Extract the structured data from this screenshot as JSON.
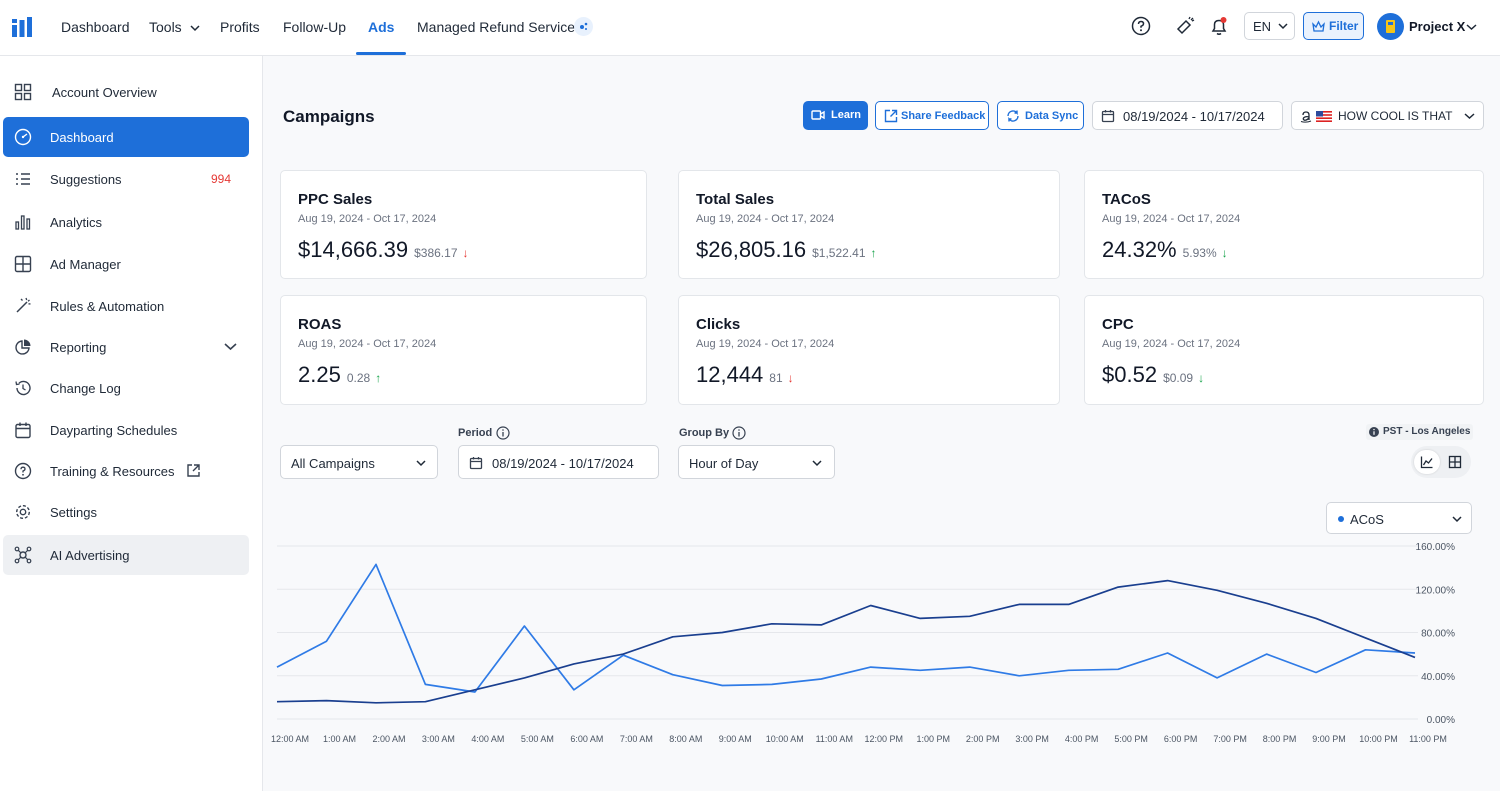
{
  "nav": {
    "items": [
      "Dashboard",
      "Tools",
      "Profits",
      "Follow-Up",
      "Ads",
      "Managed Refund Service"
    ],
    "active": "Ads",
    "lang": "EN",
    "filter": "Filter",
    "project": "Project X"
  },
  "sidebar": {
    "items": [
      {
        "label": "Account Overview",
        "icon": "grid-icon"
      },
      {
        "label": "Dashboard",
        "icon": "dashboard-icon",
        "active": true
      },
      {
        "label": "Suggestions",
        "icon": "list-icon",
        "count": "994"
      },
      {
        "label": "Analytics",
        "icon": "bar-chart-icon"
      },
      {
        "label": "Ad Manager",
        "icon": "table-icon"
      },
      {
        "label": "Rules & Automation",
        "icon": "wand-icon"
      },
      {
        "label": "Reporting",
        "icon": "pie-chart-icon"
      },
      {
        "label": "Change Log",
        "icon": "history-icon"
      },
      {
        "label": "Dayparting Schedules",
        "icon": "calendar-icon"
      },
      {
        "label": "Training & Resources",
        "icon": "help-icon"
      },
      {
        "label": "Settings",
        "icon": "gear-icon"
      },
      {
        "label": "AI Advertising",
        "icon": "ai-icon"
      }
    ]
  },
  "page": {
    "title": "Campaigns",
    "learn": "Learn",
    "share_feedback": "Share Feedback",
    "data_sync": "Data Sync",
    "date_range": "08/19/2024 - 10/17/2024",
    "store": "HOW COOL IS THAT"
  },
  "cards": [
    {
      "title": "PPC Sales",
      "date": "Aug 19, 2024 - Oct 17, 2024",
      "value": "$14,666.39",
      "change": "$386.17",
      "dir": "down"
    },
    {
      "title": "Total Sales",
      "date": "Aug 19, 2024 - Oct 17, 2024",
      "value": "$26,805.16",
      "change": "$1,522.41",
      "dir": "up"
    },
    {
      "title": "TACoS",
      "date": "Aug 19, 2024 - Oct 17, 2024",
      "value": "24.32%",
      "change": "5.93%",
      "dir": "down-good"
    },
    {
      "title": "ROAS",
      "date": "Aug 19, 2024 - Oct 17, 2024",
      "value": "2.25",
      "change": "0.28",
      "dir": "up"
    },
    {
      "title": "Clicks",
      "date": "Aug 19, 2024 - Oct 17, 2024",
      "value": "12,444",
      "change": "81",
      "dir": "down"
    },
    {
      "title": "CPC",
      "date": "Aug 19, 2024 - Oct 17, 2024",
      "value": "$0.52",
      "change": "$0.09",
      "dir": "down-good"
    }
  ],
  "filters": {
    "campaigns": "All Campaigns",
    "period_label": "Period",
    "period": "08/19/2024 - 10/17/2024",
    "groupby_label": "Group By",
    "groupby": "Hour of Day",
    "timezone": "PST - Los Angeles",
    "metric": "ACoS"
  },
  "colors": {
    "accent": "#1e6fd9",
    "series_light": "#2f7be6",
    "series_dark": "#1a3f8f",
    "up": "#16a34a",
    "down": "#e53935"
  },
  "chart_data": {
    "type": "line",
    "x": [
      "12:00 AM",
      "1:00 AM",
      "2:00 AM",
      "3:00 AM",
      "4:00 AM",
      "5:00 AM",
      "6:00 AM",
      "7:00 AM",
      "8:00 AM",
      "9:00 AM",
      "10:00 AM",
      "11:00 AM",
      "12:00 PM",
      "1:00 PM",
      "2:00 PM",
      "3:00 PM",
      "4:00 PM",
      "5:00 PM",
      "6:00 PM",
      "7:00 PM",
      "8:00 PM",
      "9:00 PM",
      "10:00 PM",
      "11:00 PM"
    ],
    "y_ticks": [
      "0.00%",
      "40.00%",
      "80.00%",
      "120.00%",
      "160.00%"
    ],
    "ylim": [
      0,
      160
    ],
    "grid": true,
    "series": [
      {
        "values": [
          48,
          72,
          143,
          32,
          25,
          86,
          27,
          59,
          41,
          31,
          32,
          37,
          48,
          45,
          48,
          40,
          45,
          46,
          61,
          38,
          60,
          43,
          64,
          61
        ],
        "color": "#2f7be6"
      },
      {
        "values": [
          16,
          17,
          15,
          16,
          27,
          38,
          51,
          60,
          76,
          80,
          88,
          87,
          105,
          93,
          95,
          106,
          106,
          122,
          128,
          119,
          107,
          93,
          75,
          57
        ],
        "color": "#1a3f8f"
      }
    ]
  }
}
